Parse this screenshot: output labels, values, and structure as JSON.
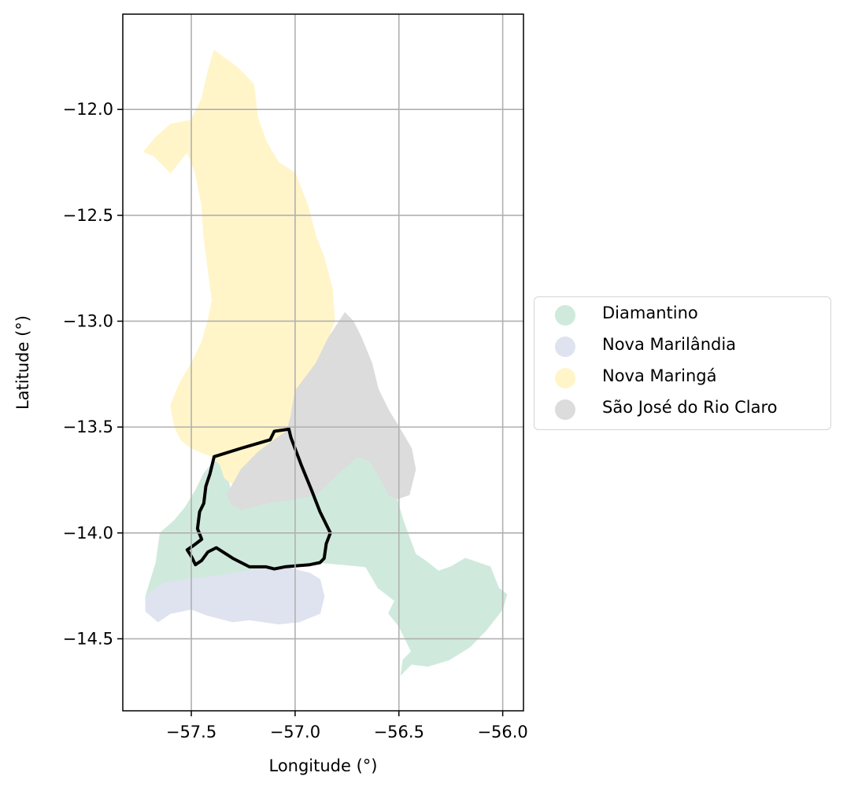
{
  "chart_data": {
    "type": "map",
    "xlabel": "Longitude (°)",
    "ylabel": "Latitude (°)",
    "xlim": [
      -57.83,
      -55.9
    ],
    "ylim": [
      -14.84,
      -11.55
    ],
    "xticks": [
      -57.5,
      -57.0,
      -56.5,
      -56.0
    ],
    "xtick_labels": [
      "−57.5",
      "−57.0",
      "−56.5",
      "−56.0"
    ],
    "yticks": [
      -12.0,
      -12.5,
      -13.0,
      -13.5,
      -14.0,
      -14.5
    ],
    "ytick_labels": [
      "−12.0",
      "−12.5",
      "−13.0",
      "−13.5",
      "−14.0",
      "−14.5"
    ],
    "grid": true,
    "legend_placement": "center-right outside",
    "regions": [
      {
        "name": "Diamantino",
        "color": "#cfeadd",
        "polygon": [
          [
            -57.34,
            -13.68
          ],
          [
            -57.31,
            -13.8
          ],
          [
            -57.24,
            -13.88
          ],
          [
            -57.14,
            -13.86
          ],
          [
            -57.0,
            -13.84
          ],
          [
            -56.9,
            -13.82
          ],
          [
            -56.77,
            -13.7
          ],
          [
            -56.7,
            -13.64
          ],
          [
            -56.64,
            -13.66
          ],
          [
            -56.58,
            -13.76
          ],
          [
            -56.55,
            -13.82
          ],
          [
            -56.51,
            -13.84
          ],
          [
            -56.48,
            -13.94
          ],
          [
            -56.45,
            -14.02
          ],
          [
            -56.42,
            -14.1
          ],
          [
            -56.36,
            -14.14
          ],
          [
            -56.31,
            -14.18
          ],
          [
            -56.25,
            -14.16
          ],
          [
            -56.18,
            -14.12
          ],
          [
            -56.06,
            -14.16
          ],
          [
            -56.02,
            -14.26
          ],
          [
            -55.98,
            -14.29
          ],
          [
            -56.0,
            -14.36
          ],
          [
            -56.08,
            -14.46
          ],
          [
            -56.16,
            -14.54
          ],
          [
            -56.26,
            -14.6
          ],
          [
            -56.36,
            -14.63
          ],
          [
            -56.44,
            -14.62
          ],
          [
            -56.49,
            -14.67
          ],
          [
            -56.48,
            -14.6
          ],
          [
            -56.44,
            -14.56
          ],
          [
            -56.5,
            -14.44
          ],
          [
            -56.55,
            -14.38
          ],
          [
            -56.52,
            -14.32
          ],
          [
            -56.6,
            -14.26
          ],
          [
            -56.66,
            -14.16
          ],
          [
            -56.76,
            -14.15
          ],
          [
            -56.88,
            -14.14
          ],
          [
            -57.05,
            -14.16
          ],
          [
            -57.22,
            -14.18
          ],
          [
            -57.36,
            -14.2
          ],
          [
            -57.52,
            -14.22
          ],
          [
            -57.64,
            -14.24
          ],
          [
            -57.72,
            -14.3
          ],
          [
            -57.67,
            -14.14
          ],
          [
            -57.65,
            -14.0
          ],
          [
            -57.58,
            -13.94
          ],
          [
            -57.53,
            -13.88
          ],
          [
            -57.48,
            -13.8
          ],
          [
            -57.44,
            -13.72
          ],
          [
            -57.39,
            -13.66
          ]
        ]
      },
      {
        "name": "Nova Marilândia",
        "color": "#dfe3f0",
        "polygon": [
          [
            -57.72,
            -14.3
          ],
          [
            -57.64,
            -14.24
          ],
          [
            -57.52,
            -14.22
          ],
          [
            -57.36,
            -14.2
          ],
          [
            -57.22,
            -14.18
          ],
          [
            -57.05,
            -14.16
          ],
          [
            -56.93,
            -14.19
          ],
          [
            -56.88,
            -14.22
          ],
          [
            -56.86,
            -14.3
          ],
          [
            -56.88,
            -14.38
          ],
          [
            -56.98,
            -14.42
          ],
          [
            -57.08,
            -14.43
          ],
          [
            -57.22,
            -14.41
          ],
          [
            -57.3,
            -14.42
          ],
          [
            -57.42,
            -14.39
          ],
          [
            -57.5,
            -14.36
          ],
          [
            -57.6,
            -14.38
          ],
          [
            -57.66,
            -14.42
          ],
          [
            -57.72,
            -14.37
          ]
        ]
      },
      {
        "name": "Nova Maringá",
        "color": "#fff5c9",
        "polygon": [
          [
            -57.39,
            -11.72
          ],
          [
            -57.35,
            -11.75
          ],
          [
            -57.28,
            -11.8
          ],
          [
            -57.2,
            -11.88
          ],
          [
            -57.18,
            -12.04
          ],
          [
            -57.14,
            -12.15
          ],
          [
            -57.08,
            -12.25
          ],
          [
            -57.0,
            -12.3
          ],
          [
            -56.98,
            -12.35
          ],
          [
            -56.94,
            -12.45
          ],
          [
            -56.9,
            -12.6
          ],
          [
            -56.86,
            -12.7
          ],
          [
            -56.82,
            -12.85
          ],
          [
            -56.81,
            -13.0
          ],
          [
            -56.84,
            -13.08
          ],
          [
            -56.9,
            -13.2
          ],
          [
            -57.0,
            -13.33
          ],
          [
            -57.02,
            -13.45
          ],
          [
            -57.04,
            -13.52
          ],
          [
            -57.1,
            -13.56
          ],
          [
            -57.18,
            -13.62
          ],
          [
            -57.26,
            -13.7
          ],
          [
            -57.3,
            -13.77
          ],
          [
            -57.34,
            -13.74
          ],
          [
            -57.36,
            -13.68
          ],
          [
            -57.4,
            -13.64
          ],
          [
            -57.5,
            -13.6
          ],
          [
            -57.55,
            -13.56
          ],
          [
            -57.58,
            -13.5
          ],
          [
            -57.6,
            -13.4
          ],
          [
            -57.56,
            -13.3
          ],
          [
            -57.5,
            -13.2
          ],
          [
            -57.45,
            -13.1
          ],
          [
            -57.42,
            -13.0
          ],
          [
            -57.4,
            -12.9
          ],
          [
            -57.42,
            -12.75
          ],
          [
            -57.44,
            -12.6
          ],
          [
            -57.45,
            -12.45
          ],
          [
            -57.48,
            -12.3
          ],
          [
            -57.52,
            -12.2
          ],
          [
            -57.6,
            -12.3
          ],
          [
            -57.68,
            -12.22
          ],
          [
            -57.73,
            -12.2
          ],
          [
            -57.67,
            -12.13
          ],
          [
            -57.6,
            -12.07
          ],
          [
            -57.5,
            -12.05
          ],
          [
            -57.45,
            -11.95
          ],
          [
            -57.42,
            -11.82
          ]
        ]
      },
      {
        "name": "São José do Rio Claro",
        "color": "#dcdcdc",
        "polygon": [
          [
            -56.76,
            -12.96
          ],
          [
            -56.8,
            -13.02
          ],
          [
            -56.84,
            -13.08
          ],
          [
            -56.9,
            -13.2
          ],
          [
            -57.0,
            -13.33
          ],
          [
            -57.02,
            -13.45
          ],
          [
            -57.04,
            -13.52
          ],
          [
            -57.1,
            -13.56
          ],
          [
            -57.18,
            -13.62
          ],
          [
            -57.26,
            -13.7
          ],
          [
            -57.3,
            -13.77
          ],
          [
            -57.33,
            -13.82
          ],
          [
            -57.3,
            -13.87
          ],
          [
            -57.26,
            -13.89
          ],
          [
            -57.14,
            -13.86
          ],
          [
            -57.0,
            -13.84
          ],
          [
            -56.9,
            -13.82
          ],
          [
            -56.77,
            -13.7
          ],
          [
            -56.7,
            -13.64
          ],
          [
            -56.64,
            -13.66
          ],
          [
            -56.58,
            -13.76
          ],
          [
            -56.55,
            -13.82
          ],
          [
            -56.51,
            -13.84
          ],
          [
            -56.45,
            -13.82
          ],
          [
            -56.42,
            -13.7
          ],
          [
            -56.44,
            -13.6
          ],
          [
            -56.5,
            -13.5
          ],
          [
            -56.55,
            -13.42
          ],
          [
            -56.6,
            -13.32
          ],
          [
            -56.63,
            -13.2
          ],
          [
            -56.68,
            -13.08
          ],
          [
            -56.72,
            -13.0
          ]
        ]
      }
    ],
    "outline": {
      "color": "#000000",
      "polygon": [
        [
          -57.39,
          -13.64
        ],
        [
          -57.26,
          -13.6
        ],
        [
          -57.12,
          -13.56
        ],
        [
          -57.1,
          -13.52
        ],
        [
          -57.03,
          -13.51
        ],
        [
          -57.02,
          -13.55
        ],
        [
          -56.97,
          -13.68
        ],
        [
          -56.92,
          -13.8
        ],
        [
          -56.88,
          -13.9
        ],
        [
          -56.83,
          -14.0
        ],
        [
          -56.85,
          -14.05
        ],
        [
          -56.86,
          -14.12
        ],
        [
          -56.88,
          -14.14
        ],
        [
          -56.93,
          -14.15
        ],
        [
          -57.05,
          -14.16
        ],
        [
          -57.1,
          -14.17
        ],
        [
          -57.14,
          -14.16
        ],
        [
          -57.22,
          -14.16
        ],
        [
          -57.3,
          -14.12
        ],
        [
          -57.38,
          -14.07
        ],
        [
          -57.42,
          -14.09
        ],
        [
          -57.45,
          -14.13
        ],
        [
          -57.48,
          -14.15
        ],
        [
          -57.5,
          -14.11
        ],
        [
          -57.52,
          -14.08
        ],
        [
          -57.49,
          -14.06
        ],
        [
          -57.45,
          -14.03
        ],
        [
          -57.47,
          -13.98
        ],
        [
          -57.46,
          -13.9
        ],
        [
          -57.44,
          -13.86
        ],
        [
          -57.43,
          -13.78
        ],
        [
          -57.41,
          -13.72
        ],
        [
          -57.4,
          -13.68
        ]
      ]
    },
    "legend": [
      {
        "label": "Diamantino",
        "color": "#cfeadd"
      },
      {
        "label": "Nova Marilândia",
        "color": "#dfe3f0"
      },
      {
        "label": "Nova Maringá",
        "color": "#fff5c9"
      },
      {
        "label": "São José do Rio Claro",
        "color": "#dcdcdc"
      }
    ]
  }
}
